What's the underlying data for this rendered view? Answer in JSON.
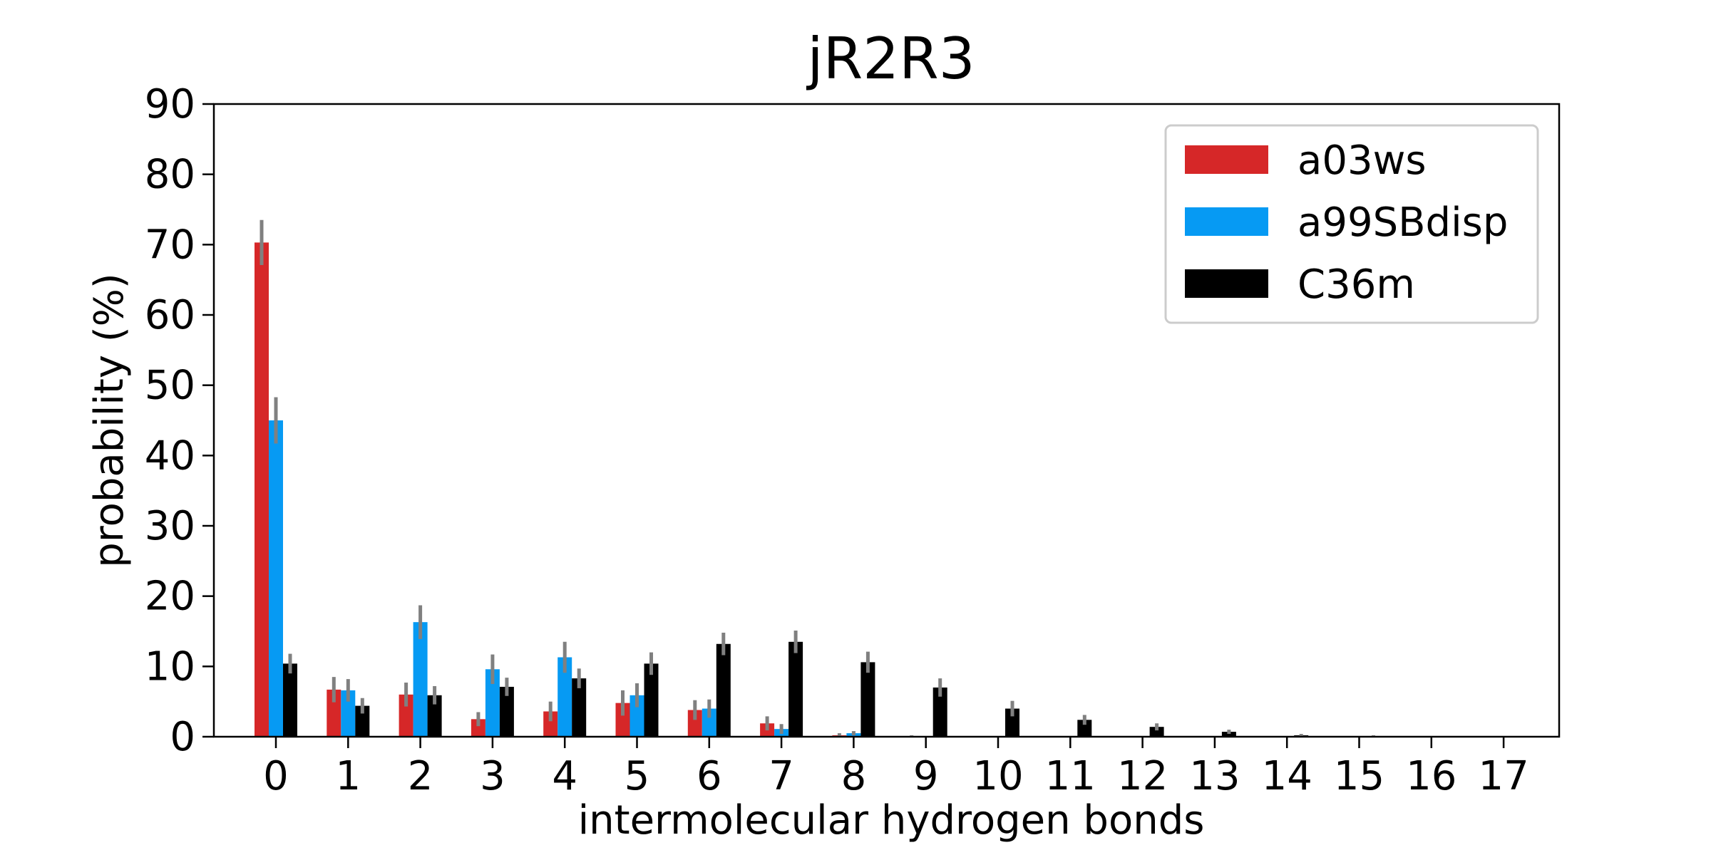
{
  "chart_data": {
    "type": "bar",
    "title": "jR2R3",
    "xlabel": "intermolecular hydrogen bonds",
    "ylabel": "probability (%)",
    "ylim": [
      0,
      90
    ],
    "yticks": [
      0,
      10,
      20,
      30,
      40,
      50,
      60,
      70,
      80,
      90
    ],
    "categories": [
      "0",
      "1",
      "2",
      "3",
      "4",
      "5",
      "6",
      "7",
      "8",
      "9",
      "10",
      "11",
      "12",
      "13",
      "14",
      "15",
      "16",
      "17"
    ],
    "legend_position": "top-right",
    "grid": false,
    "series": [
      {
        "name": "a03ws",
        "color": "#d62728",
        "values": [
          70.3,
          6.7,
          6.0,
          2.5,
          3.6,
          4.8,
          3.8,
          1.9,
          0.2,
          0.1,
          0,
          0,
          0,
          0,
          0,
          0,
          0,
          0
        ],
        "errors": [
          3.2,
          1.8,
          1.7,
          1.0,
          1.4,
          1.8,
          1.4,
          1.0,
          0.3,
          0.1,
          0,
          0,
          0,
          0,
          0,
          0,
          0,
          0
        ]
      },
      {
        "name": "a99SBdisp",
        "color": "#069af3",
        "values": [
          45.0,
          6.6,
          16.3,
          9.6,
          11.3,
          5.9,
          4.0,
          1.1,
          0.5,
          0,
          0,
          0,
          0,
          0,
          0,
          0,
          0,
          0
        ],
        "errors": [
          3.3,
          1.6,
          2.4,
          2.1,
          2.2,
          1.7,
          1.3,
          0.7,
          0.3,
          0,
          0,
          0,
          0,
          0,
          0,
          0,
          0,
          0
        ]
      },
      {
        "name": "C36m",
        "color": "#000000",
        "values": [
          10.4,
          4.4,
          5.9,
          7.1,
          8.3,
          10.4,
          13.2,
          13.5,
          10.6,
          7.0,
          4.0,
          2.4,
          1.4,
          0.7,
          0.2,
          0.1,
          0.05,
          0
        ],
        "errors": [
          1.4,
          1.1,
          1.3,
          1.3,
          1.4,
          1.6,
          1.6,
          1.6,
          1.5,
          1.3,
          1.1,
          0.7,
          0.5,
          0.3,
          0.2,
          0.1,
          0.05,
          0
        ]
      }
    ]
  }
}
